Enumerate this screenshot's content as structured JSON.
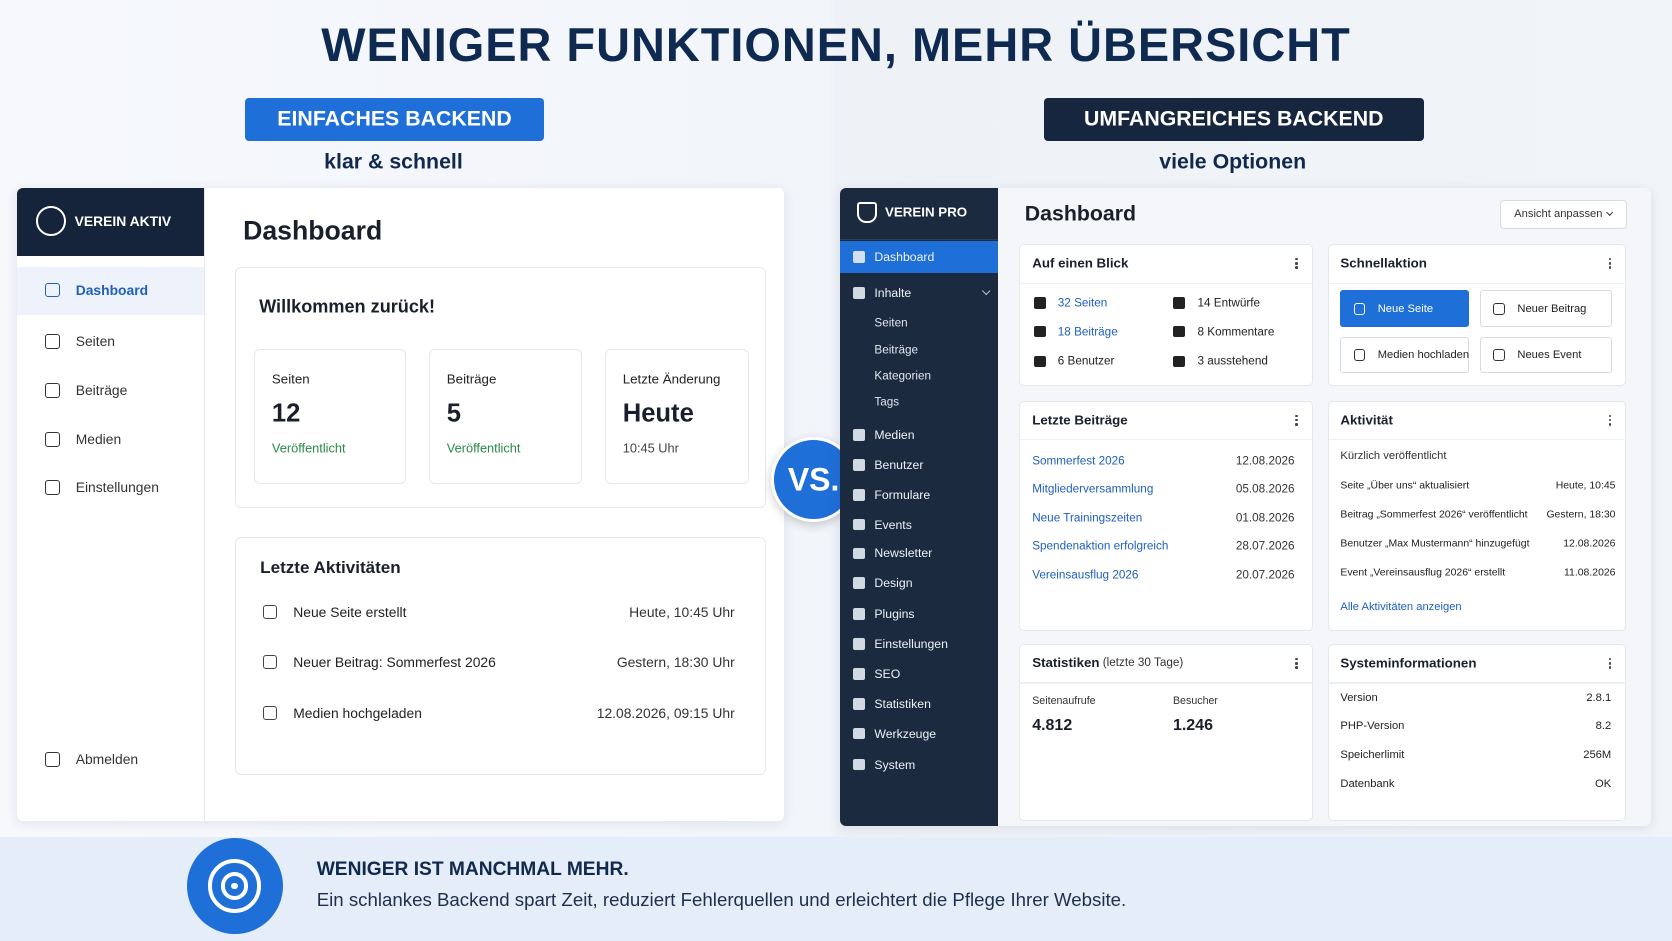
{
  "header": {
    "title": "WENIGER FUNKTIONEN, MEHR ÜBERSICHT"
  },
  "left": {
    "badge": "EINFACHES BACKEND",
    "subtitle": "klar & schnell",
    "sidebar": {
      "brand": "VEREIN AKTIV",
      "items": [
        "Dashboard",
        "Seiten",
        "Beiträge",
        "Medien",
        "Einstellungen"
      ],
      "logout": "Abmelden"
    },
    "page_title": "Dashboard",
    "welcome": {
      "title": "Willkommen zurück!",
      "cards": [
        {
          "label": "Seiten",
          "value": 12,
          "note": "Veröffentlicht"
        },
        {
          "label": "Beiträge",
          "value": 5,
          "note": "Veröffentlicht"
        },
        {
          "label": "Letzte Änderung",
          "value": "Heute",
          "note": "10:45 Uhr"
        }
      ]
    },
    "activities": {
      "title": "Letzte Aktivitäten",
      "rows": [
        [
          "Neue Seite erstellt",
          "Heute, 10:45 Uhr"
        ],
        [
          "Neuer Beitrag: Sommerfest 2026",
          "Gestern, 18:30 Uhr"
        ],
        [
          "Medien hochgeladen",
          "12.08.2026, 09:15 Uhr"
        ]
      ]
    }
  },
  "vs": "VS.",
  "right": {
    "badge": "UMFANGREICHES BACKEND",
    "subtitle": "viele Optionen",
    "sidebar": {
      "brand": "VEREIN PRO",
      "items": [
        "Dashboard",
        "Inhalte",
        "Medien",
        "Benutzer",
        "Formulare",
        "Events",
        "Newsletter",
        "Design",
        "Plugins",
        "Einstellungen",
        "SEO",
        "Statistiken",
        "Werkzeuge",
        "System"
      ],
      "subitems": [
        "Seiten",
        "Beiträge",
        "Kategorien",
        "Tags"
      ]
    },
    "page_title": "Dashboard",
    "view_button": "Ansicht anpassen",
    "glance": {
      "title": "Auf einen Blick",
      "items": [
        "32 Seiten",
        "14 Entwürfe",
        "18 Beiträge",
        "8 Kommentare",
        "6 Benutzer",
        "3 ausstehend"
      ]
    },
    "quick": {
      "title": "Schnellaktion",
      "buttons": [
        "Neue Seite",
        "Neuer Beitrag",
        "Medien hochladen",
        "Neues Event"
      ]
    },
    "posts": {
      "title": "Letzte Beiträge",
      "rows": [
        [
          "Sommerfest 2026",
          "12.08.2026"
        ],
        [
          "Mitgliederversammlung",
          "05.08.2026"
        ],
        [
          "Neue Trainingszeiten",
          "01.08.2026"
        ],
        [
          "Spendenaktion erfolgreich",
          "28.07.2026"
        ],
        [
          "Vereinsausflug 2026",
          "20.07.2026"
        ]
      ]
    },
    "activity": {
      "title": "Aktivität",
      "subtitle": "Kürzlich veröffentlicht",
      "rows": [
        [
          "Seite „Über uns“ aktualisiert",
          "Heute, 10:45"
        ],
        [
          "Beitrag „Sommerfest 2026“ veröffentlicht",
          "Gestern, 18:30"
        ],
        [
          "Benutzer „Max Mustermann“ hinzugefügt",
          "12.08.2026"
        ],
        [
          "Event „Vereinsausflug 2026“ erstellt",
          "11.08.2026"
        ]
      ],
      "link": "Alle Aktivitäten anzeigen"
    },
    "stats": {
      "title": "Statistiken",
      "period": "(letzte 30 Tage)",
      "metrics": [
        {
          "label": "Seitenaufrufe",
          "value": "4.812"
        },
        {
          "label": "Besucher",
          "value": "1.246"
        }
      ]
    },
    "system": {
      "title": "Systeminformationen",
      "rows": [
        [
          "Version",
          "2.8.1"
        ],
        [
          "PHP-Version",
          "8.2"
        ],
        [
          "Speicherlimit",
          "256M"
        ],
        [
          "Datenbank",
          "OK"
        ]
      ]
    }
  },
  "footer": {
    "title": "WENIGER IST MANCHMAL MEHR.",
    "text": "Ein schlankes Backend spart Zeit, reduziert Fehlerquellen und erleichtert die Pflege Ihrer Website."
  }
}
